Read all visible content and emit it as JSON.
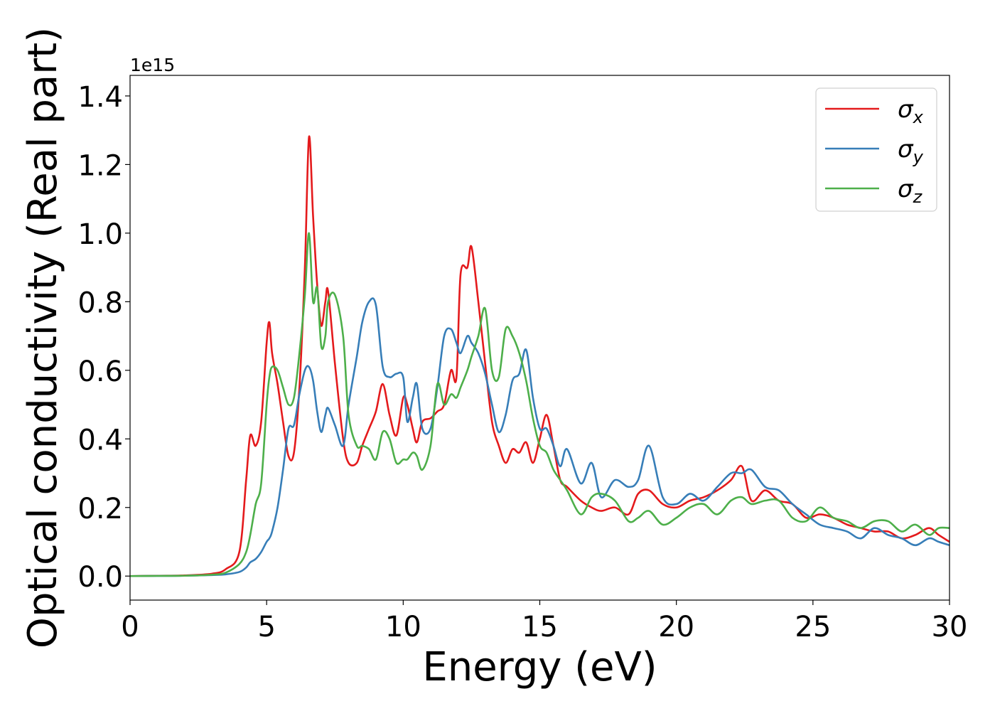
{
  "chart_data": {
    "type": "line",
    "xlabel": "Energy (eV)",
    "ylabel": "Optical conductivity (Real part)",
    "y_offset_text": "1e15",
    "xlim": [
      0,
      30
    ],
    "ylim": [
      -0.07,
      1.46
    ],
    "x_ticks": [
      0,
      5,
      10,
      15,
      20,
      25,
      30
    ],
    "x_tick_labels": [
      "0",
      "5",
      "10",
      "15",
      "20",
      "25",
      "30"
    ],
    "y_ticks": [
      0.0,
      0.2,
      0.4,
      0.6,
      0.8,
      1.0,
      1.2,
      1.4
    ],
    "y_tick_labels": [
      "0.0",
      "0.2",
      "0.4",
      "0.6",
      "0.8",
      "1.0",
      "1.2",
      "1.4"
    ],
    "grid": false,
    "legend_position": "top-right",
    "x": [
      0,
      1,
      2,
      3,
      3.5,
      4,
      4.25,
      4.4,
      4.6,
      4.8,
      5.0,
      5.1,
      5.2,
      5.4,
      5.6,
      5.8,
      6.0,
      6.2,
      6.4,
      6.55,
      6.7,
      6.85,
      7.0,
      7.15,
      7.25,
      7.5,
      7.8,
      8.0,
      8.3,
      8.5,
      8.75,
      9.0,
      9.25,
      9.5,
      9.75,
      10.0,
      10.15,
      10.35,
      10.5,
      10.7,
      11.0,
      11.25,
      11.5,
      11.75,
      11.95,
      12.1,
      12.35,
      12.5,
      12.75,
      13.0,
      13.25,
      13.5,
      13.75,
      14.0,
      14.25,
      14.5,
      14.75,
      15.0,
      15.25,
      15.5,
      15.75,
      16.0,
      16.5,
      16.9,
      17.25,
      17.75,
      18.25,
      18.6,
      19.0,
      19.5,
      20.0,
      20.5,
      21.0,
      21.5,
      22.0,
      22.4,
      22.75,
      23.25,
      23.75,
      24.25,
      24.75,
      25.25,
      25.75,
      26.25,
      26.75,
      27.25,
      27.75,
      28.25,
      28.75,
      29.25,
      29.6,
      30.0
    ],
    "series": [
      {
        "name": "σx",
        "color": "#e41a1c",
        "values": [
          0,
          0.001,
          0.002,
          0.007,
          0.02,
          0.07,
          0.28,
          0.41,
          0.38,
          0.45,
          0.68,
          0.74,
          0.65,
          0.56,
          0.45,
          0.35,
          0.36,
          0.55,
          0.9,
          1.28,
          1.05,
          0.85,
          0.73,
          0.8,
          0.83,
          0.62,
          0.4,
          0.33,
          0.33,
          0.38,
          0.43,
          0.48,
          0.56,
          0.47,
          0.41,
          0.52,
          0.5,
          0.43,
          0.39,
          0.45,
          0.46,
          0.48,
          0.5,
          0.6,
          0.58,
          0.88,
          0.9,
          0.96,
          0.8,
          0.62,
          0.45,
          0.38,
          0.33,
          0.37,
          0.36,
          0.39,
          0.33,
          0.4,
          0.47,
          0.38,
          0.28,
          0.26,
          0.22,
          0.2,
          0.19,
          0.2,
          0.18,
          0.24,
          0.25,
          0.21,
          0.2,
          0.22,
          0.23,
          0.25,
          0.28,
          0.32,
          0.22,
          0.25,
          0.22,
          0.21,
          0.17,
          0.18,
          0.17,
          0.15,
          0.14,
          0.13,
          0.13,
          0.11,
          0.12,
          0.14,
          0.12,
          0.1
        ]
      },
      {
        "name": "σy",
        "color": "#377eb8",
        "values": [
          0,
          0.0005,
          0.001,
          0.003,
          0.005,
          0.012,
          0.025,
          0.04,
          0.05,
          0.07,
          0.1,
          0.11,
          0.13,
          0.2,
          0.31,
          0.43,
          0.44,
          0.53,
          0.6,
          0.61,
          0.57,
          0.48,
          0.42,
          0.47,
          0.49,
          0.44,
          0.38,
          0.5,
          0.64,
          0.74,
          0.8,
          0.79,
          0.61,
          0.58,
          0.59,
          0.58,
          0.45,
          0.52,
          0.56,
          0.43,
          0.43,
          0.55,
          0.7,
          0.72,
          0.68,
          0.65,
          0.7,
          0.68,
          0.65,
          0.59,
          0.5,
          0.42,
          0.47,
          0.57,
          0.59,
          0.66,
          0.52,
          0.43,
          0.43,
          0.38,
          0.32,
          0.37,
          0.27,
          0.33,
          0.23,
          0.28,
          0.26,
          0.28,
          0.38,
          0.23,
          0.21,
          0.24,
          0.22,
          0.26,
          0.3,
          0.3,
          0.31,
          0.26,
          0.25,
          0.21,
          0.18,
          0.15,
          0.14,
          0.13,
          0.11,
          0.14,
          0.12,
          0.11,
          0.09,
          0.11,
          0.1,
          0.09
        ]
      },
      {
        "name": "σz",
        "color": "#4daf4a",
        "values": [
          0,
          0.0005,
          0.001,
          0.004,
          0.01,
          0.035,
          0.07,
          0.12,
          0.21,
          0.27,
          0.5,
          0.58,
          0.61,
          0.6,
          0.55,
          0.5,
          0.52,
          0.65,
          0.82,
          1.0,
          0.8,
          0.84,
          0.67,
          0.7,
          0.8,
          0.82,
          0.7,
          0.47,
          0.38,
          0.38,
          0.37,
          0.34,
          0.42,
          0.4,
          0.33,
          0.34,
          0.34,
          0.36,
          0.35,
          0.31,
          0.38,
          0.56,
          0.5,
          0.53,
          0.52,
          0.55,
          0.6,
          0.64,
          0.7,
          0.78,
          0.6,
          0.58,
          0.72,
          0.7,
          0.65,
          0.57,
          0.46,
          0.38,
          0.36,
          0.31,
          0.28,
          0.25,
          0.18,
          0.23,
          0.24,
          0.22,
          0.16,
          0.17,
          0.19,
          0.15,
          0.17,
          0.2,
          0.21,
          0.18,
          0.22,
          0.23,
          0.21,
          0.22,
          0.22,
          0.17,
          0.16,
          0.2,
          0.17,
          0.16,
          0.14,
          0.16,
          0.16,
          0.13,
          0.15,
          0.12,
          0.14,
          0.14
        ]
      }
    ]
  }
}
